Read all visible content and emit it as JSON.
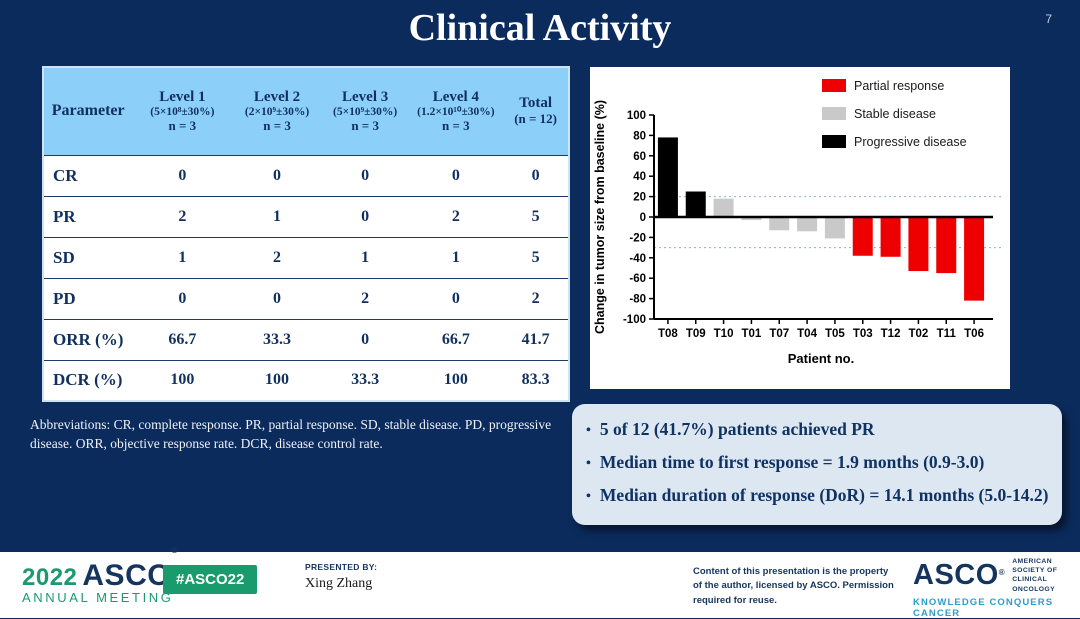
{
  "slide": {
    "title": "Clinical Activity",
    "page_number": "7"
  },
  "table": {
    "header": {
      "parameter": "Parameter",
      "columns": [
        {
          "title": "Level 1",
          "dose": "(5×10⁸±30%)",
          "n": "n = 3"
        },
        {
          "title": "Level 2",
          "dose": "(2×10⁹±30%)",
          "n": "n = 3"
        },
        {
          "title": "Level 3",
          "dose": "(5×10⁹±30%)",
          "n": "n = 3"
        },
        {
          "title": "Level 4",
          "dose": "(1.2×10¹⁰±30%)",
          "n": "n = 3"
        },
        {
          "title": "Total",
          "dose": "",
          "n": "(n = 12)"
        }
      ]
    },
    "rows": [
      {
        "label": "CR",
        "values": [
          "0",
          "0",
          "0",
          "0",
          "0"
        ]
      },
      {
        "label": "PR",
        "values": [
          "2",
          "1",
          "0",
          "2",
          "5"
        ]
      },
      {
        "label": "SD",
        "values": [
          "1",
          "2",
          "1",
          "1",
          "5"
        ]
      },
      {
        "label": "PD",
        "values": [
          "0",
          "0",
          "2",
          "0",
          "2"
        ]
      },
      {
        "label": "ORR (%)",
        "values": [
          "66.7",
          "33.3",
          "0",
          "66.7",
          "41.7"
        ]
      },
      {
        "label": "DCR (%)",
        "values": [
          "100",
          "100",
          "33.3",
          "100",
          "83.3"
        ]
      }
    ]
  },
  "abbreviations": "Abbreviations: CR, complete response. PR, partial response. SD, stable disease. PD, progressive disease. ORR, objective response rate. DCR, disease control rate.",
  "chart_data": {
    "type": "bar",
    "title": "",
    "xlabel": "Patient no.",
    "ylabel": "Change in tumor size from baseline (%)",
    "ylim": [
      -100,
      100
    ],
    "ytick_step": 20,
    "grid": false,
    "legend_position": "top-right",
    "categories": [
      "T08",
      "T09",
      "T10",
      "T01",
      "T07",
      "T04",
      "T05",
      "T03",
      "T12",
      "T02",
      "T11",
      "T06"
    ],
    "values": [
      78,
      25,
      18,
      -3,
      -13,
      -14,
      -21,
      -38,
      -39,
      -53,
      -55,
      -82
    ],
    "bar_classes": [
      "progressive",
      "progressive",
      "stable",
      "stable",
      "stable",
      "stable",
      "stable",
      "partial",
      "partial",
      "partial",
      "partial",
      "partial"
    ],
    "class_colors": {
      "partial": "#ee0000",
      "stable": "#c9c9c9",
      "progressive": "#000000"
    },
    "legend": [
      {
        "label": "Partial response",
        "class": "partial"
      },
      {
        "label": "Stable disease",
        "class": "stable"
      },
      {
        "label": "Progressive disease",
        "class": "progressive"
      }
    ],
    "reference_lines": [
      20,
      -30
    ]
  },
  "highlights": {
    "bullets": [
      "5 of 12 (41.7%) patients achieved PR",
      "Median time to first response = 1.9 months (0.9-3.0)",
      "Median duration of response (DoR) = 14.1 months (5.0-14.2)"
    ]
  },
  "footer": {
    "meeting_logo": {
      "year": "2022",
      "org": "ASCO",
      "reg": "®",
      "meeting": "ANNUAL MEETING"
    },
    "hashtag": "#ASCO22",
    "presented_by_label": "PRESENTED BY:",
    "presenter": "Xing Zhang",
    "copyright": "Content of this presentation is the property of the author, licensed by ASCO. Permission required for reuse.",
    "asco_logo": {
      "org": "ASCO",
      "reg": "®",
      "society_line1": "American Society of",
      "society_line2": "Clinical Oncology",
      "tagline": "KNOWLEDGE CONQUERS CANCER"
    }
  },
  "colors": {
    "slide_background": "#0b2b5d",
    "table_header_blue": "#8ccff9",
    "navy_text": "#11305f",
    "partial_response_red": "#ee0000",
    "stable_disease_gray": "#c9c9c9",
    "progressive_disease_black": "#000000",
    "asco_green": "#1a9b6e",
    "tagline_blue": "#2e9ccb",
    "highlight_box": "#dde7f1"
  }
}
